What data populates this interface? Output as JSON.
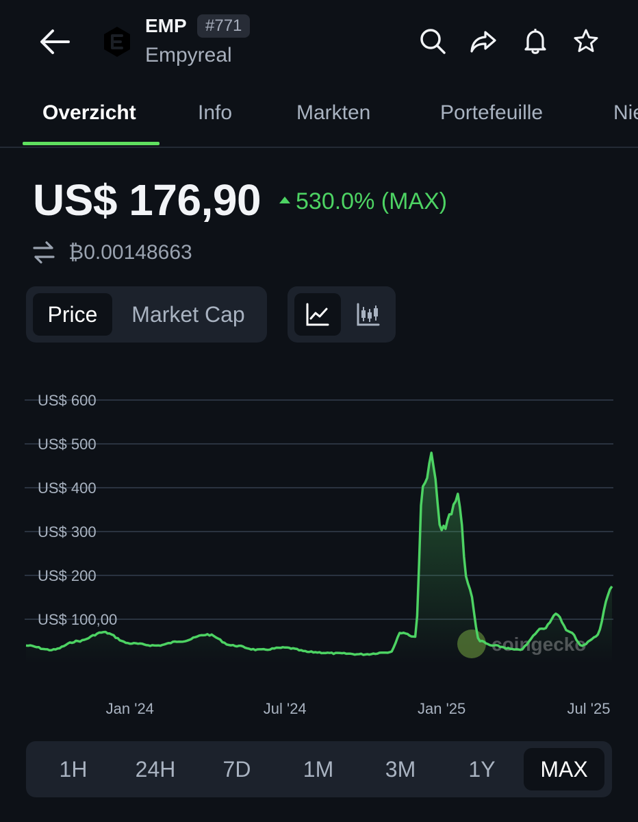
{
  "header": {
    "ticker": "EMP",
    "rank": "#771",
    "coin_name": "Empyreal",
    "icons": [
      "back-arrow-icon",
      "search-icon",
      "share-icon",
      "bell-icon",
      "star-icon"
    ]
  },
  "tabs": [
    {
      "label": "Overzicht",
      "active": true
    },
    {
      "label": "Info"
    },
    {
      "label": "Markten"
    },
    {
      "label": "Portefeuille"
    },
    {
      "label": "Nie"
    }
  ],
  "price": {
    "value": "US$ 176,90",
    "change": "530.0% (MAX)",
    "btc_value": "₿0.00148663",
    "change_color": "#4dd363"
  },
  "toggles": {
    "price_label": "Price",
    "market_cap_label": "Market Cap",
    "chart_icons": [
      "line-chart-icon",
      "candlestick-icon"
    ]
  },
  "chart_data": {
    "type": "area",
    "y_tick_labels": [
      "US$ 600",
      "US$ 500",
      "US$ 400",
      "US$ 300",
      "US$ 200",
      "US$ 100,00"
    ],
    "y_ticks": [
      600,
      500,
      400,
      300,
      200,
      100
    ],
    "x_tick_labels": [
      "Jan '24",
      "Jul '24",
      "Jan '25",
      "Jul '25"
    ],
    "ylim": [
      0,
      600
    ],
    "grid": true,
    "line_color": "#4dd363",
    "watermark": "coingecko",
    "series": [
      {
        "x": [
          "2023-09-01",
          "2023-10-01",
          "2023-11-01",
          "2023-12-01",
          "2024-01-01",
          "2024-02-01",
          "2024-03-01",
          "2024-04-01",
          "2024-05-01",
          "2024-06-01",
          "2024-07-01",
          "2024-08-01",
          "2024-09-01",
          "2024-10-01",
          "2024-11-01",
          "2024-11-15",
          "2024-12-01",
          "2024-12-10",
          "2024-12-20",
          "2025-01-01",
          "2025-01-10",
          "2025-01-20",
          "2025-02-01",
          "2025-02-15",
          "2025-03-01",
          "2025-04-01",
          "2025-05-01",
          "2025-05-15",
          "2025-06-01",
          "2025-06-15",
          "2025-07-01",
          "2025-07-20"
        ],
        "values": [
          40,
          30,
          50,
          70,
          45,
          40,
          50,
          65,
          40,
          30,
          35,
          25,
          22,
          20,
          25,
          70,
          60,
          400,
          470,
          300,
          330,
          380,
          180,
          50,
          40,
          30,
          80,
          110,
          70,
          40,
          60,
          175
        ]
      }
    ]
  },
  "range": {
    "buttons": [
      "1H",
      "24H",
      "7D",
      "1M",
      "3M",
      "1Y",
      "MAX"
    ],
    "active": "MAX"
  }
}
